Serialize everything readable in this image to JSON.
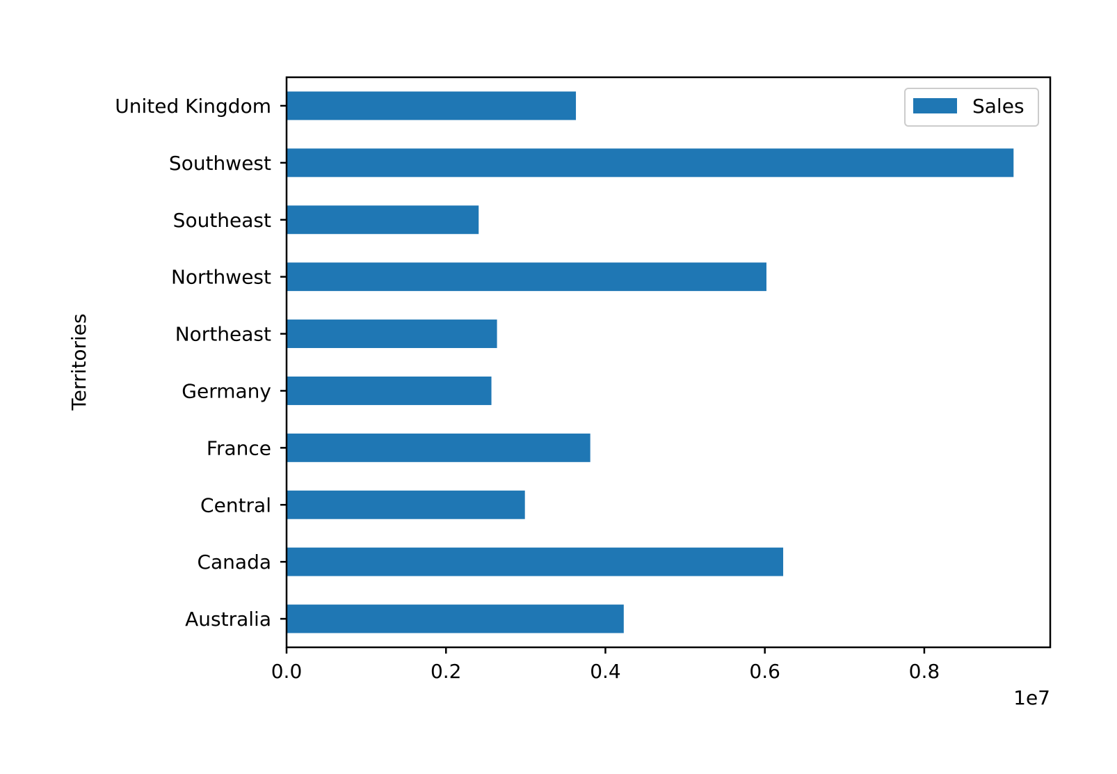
{
  "chart_data": {
    "type": "bar",
    "orientation": "horizontal",
    "title": "",
    "xlabel": "",
    "ylabel": "Territories",
    "x_offset_label": "1e7",
    "xlim": [
      0,
      0.958
    ],
    "x_ticks": [
      0.0,
      0.2,
      0.4,
      0.6,
      0.8
    ],
    "x_tick_labels": [
      "0.0",
      "0.2",
      "0.4",
      "0.6",
      "0.8"
    ],
    "categories": [
      "Australia",
      "Canada",
      "Central",
      "France",
      "Germany",
      "Northeast",
      "Northwest",
      "Southeast",
      "Southwest",
      "United Kingdom"
    ],
    "series": [
      {
        "name": "Sales",
        "color": "#1f77b4",
        "values": [
          0.423,
          0.623,
          0.299,
          0.381,
          0.257,
          0.264,
          0.602,
          0.241,
          0.912,
          0.363
        ]
      }
    ],
    "grid": false,
    "legend": {
      "position": "upper-right",
      "entries": [
        "Sales"
      ]
    }
  }
}
